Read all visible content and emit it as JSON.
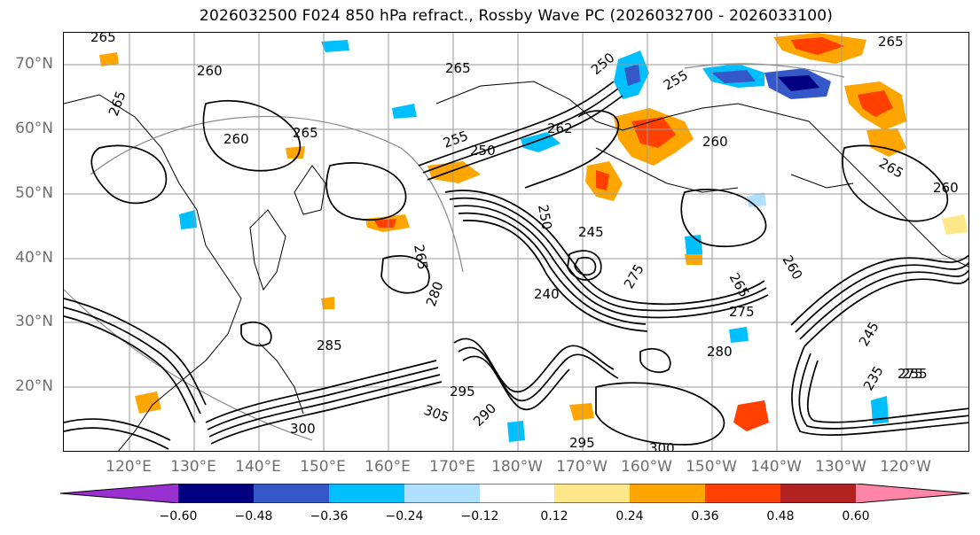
{
  "title": "2026032500 F024 850 hPa refract., Rossby Wave PC (2026032700 - 2026033100)",
  "lat_labels": [
    "70°N",
    "60°N",
    "50°N",
    "40°N",
    "30°N",
    "20°N"
  ],
  "lon_labels": [
    "120°E",
    "130°E",
    "140°E",
    "150°E",
    "160°E",
    "170°E",
    "180°W",
    "170°W",
    "160°W",
    "150°W",
    "140°W",
    "130°W",
    "120°W"
  ],
  "colorbar": {
    "ticks": [
      "−0.60",
      "−0.48",
      "−0.36",
      "−0.24",
      "−0.12",
      "0.12",
      "0.24",
      "0.36",
      "0.48",
      "0.60"
    ],
    "colors": [
      "#9b30d0",
      "#000080",
      "#3558c8",
      "#00bfff",
      "#b0e0ff",
      "#ffffff",
      "#ffe88a",
      "#ffa500",
      "#ff4000",
      "#b22222",
      "#ff85a8"
    ]
  },
  "contour_labels": [
    "265",
    "260",
    "265",
    "260",
    "265",
    "265",
    "250",
    "255",
    "250",
    "255",
    "262",
    "260",
    "265",
    "265",
    "260",
    "245",
    "240",
    "275",
    "275",
    "280",
    "285",
    "290",
    "295",
    "300",
    "305",
    "295",
    "300",
    "265",
    "260",
    "245",
    "235",
    "265",
    "280",
    "275",
    "250",
    "255"
  ]
}
